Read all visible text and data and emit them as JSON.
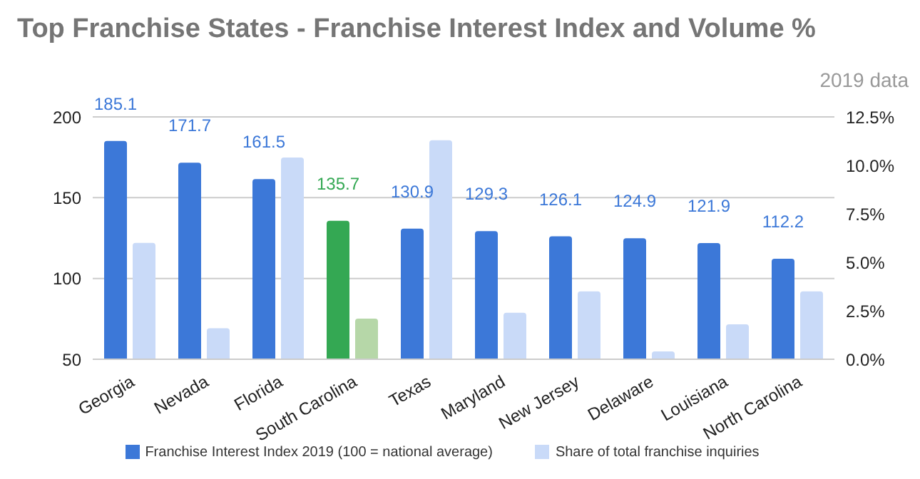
{
  "chart_data": {
    "type": "bar",
    "title": "Top Franchise States - Franchise Interest Index and Volume %",
    "subtitle": "2019 data",
    "categories": [
      "Georgia",
      "Nevada",
      "Florida",
      "South Carolina",
      "Texas",
      "Maryland",
      "New Jersey",
      "Delaware",
      "Louisiana",
      "North Carolina"
    ],
    "series": [
      {
        "name": "Franchise Interest Index 2019 (100 = national average)",
        "color": "#3c78d8",
        "colors": [
          "#3c78d8",
          "#3c78d8",
          "#3c78d8",
          "#34a853",
          "#3c78d8",
          "#3c78d8",
          "#3c78d8",
          "#3c78d8",
          "#3c78d8",
          "#3c78d8"
        ],
        "values": [
          185.1,
          171.7,
          161.5,
          135.7,
          130.9,
          129.3,
          126.1,
          124.9,
          121.9,
          112.2
        ],
        "value_labels": [
          "185.1",
          "171.7",
          "161.5",
          "135.7",
          "130.9",
          "129.3",
          "126.1",
          "124.9",
          "121.9",
          "112.2"
        ]
      },
      {
        "name": "Share of total franchise inquiries",
        "color": "#c9daf8",
        "colors": [
          "#c9daf8",
          "#c9daf8",
          "#c9daf8",
          "#b6d7a8",
          "#c9daf8",
          "#c9daf8",
          "#c9daf8",
          "#c9daf8",
          "#c9daf8",
          "#c9daf8"
        ],
        "values": [
          6.0,
          1.6,
          10.4,
          2.1,
          11.3,
          2.4,
          3.5,
          0.4,
          1.8,
          3.5
        ],
        "axis": "y2"
      }
    ],
    "ylim": [
      50,
      200
    ],
    "yticks": [
      50,
      100,
      150,
      200
    ],
    "y2lim": [
      0,
      12.5
    ],
    "y2ticks": [
      {
        "value": 0,
        "label": "0.0%"
      },
      {
        "value": 2.5,
        "label": "2.5%"
      },
      {
        "value": 5,
        "label": "5.0%"
      },
      {
        "value": 7.5,
        "label": "7.5%"
      },
      {
        "value": 10,
        "label": "10.0%"
      },
      {
        "value": 12.5,
        "label": "12.5%"
      }
    ],
    "grid": "y",
    "legend": "bottom"
  }
}
